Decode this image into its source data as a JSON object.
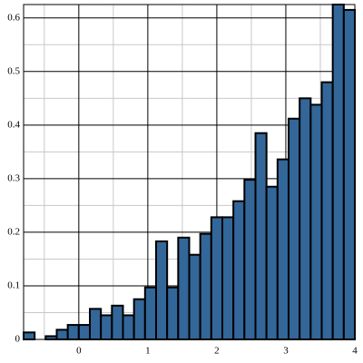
{
  "chart_data": {
    "type": "histogram",
    "bins": [
      -0.8,
      -0.64,
      -0.48,
      -0.32,
      -0.16,
      0,
      0.16,
      0.32,
      0.48,
      0.64,
      0.8,
      0.96,
      1.12,
      1.28,
      1.44,
      1.6,
      1.76,
      1.92,
      2.08,
      2.24,
      2.4,
      2.56,
      2.72,
      2.88,
      3.04,
      3.2,
      3.36,
      3.52,
      3.68,
      3.84,
      4.0
    ],
    "values": [
      0.013,
      0,
      0.006,
      0.018,
      0.027,
      0.027,
      0.057,
      0.045,
      0.063,
      0.045,
      0.075,
      0.097,
      0.183,
      0.097,
      0.19,
      0.158,
      0.197,
      0.228,
      0.228,
      0.258,
      0.298,
      0.385,
      0.285,
      0.336,
      0.412,
      0.45,
      0.438,
      0.48,
      0.625,
      0.615
    ],
    "color": "#336699",
    "xlim": [
      -0.8,
      4.0
    ],
    "ylim": [
      0,
      0.625
    ],
    "xticks": [
      0,
      1,
      2,
      3,
      4
    ],
    "yticks": [
      0,
      0.1,
      0.2,
      0.3,
      0.4,
      0.5,
      0.6
    ],
    "xminorticks": [
      -0.5,
      0.5,
      1.5,
      2.5,
      3.5
    ],
    "yminorticks": [
      0.05,
      0.15,
      0.25,
      0.35,
      0.45,
      0.55
    ],
    "grid": true
  }
}
